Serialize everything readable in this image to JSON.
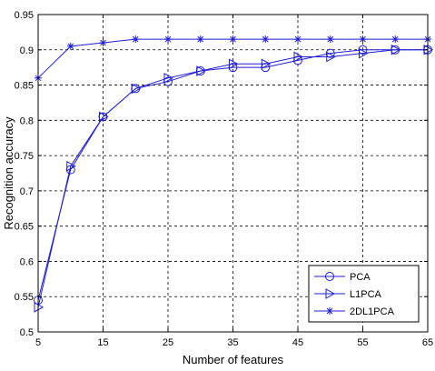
{
  "chart_data": {
    "type": "line",
    "xlabel": "Number of features",
    "ylabel": "Recognition accuracy",
    "xlim": [
      5,
      65
    ],
    "ylim": [
      0.5,
      0.95
    ],
    "xticks": [
      5,
      15,
      25,
      35,
      45,
      55,
      65
    ],
    "yticks": [
      0.5,
      0.55,
      0.6,
      0.65,
      0.7,
      0.75,
      0.8,
      0.85,
      0.9,
      0.95
    ],
    "xtick_labels": [
      "5",
      "15",
      "25",
      "35",
      "45",
      "55",
      "65"
    ],
    "ytick_labels": [
      "0.5",
      "0.55",
      "0.6",
      "0.65",
      "0.7",
      "0.75",
      "0.8",
      "0.85",
      "0.9",
      "0.95"
    ],
    "grid": true,
    "legend_position": "bottom-right",
    "line_color": "#1f1fd6",
    "series": [
      {
        "name": "PCA",
        "marker": "circle",
        "x": [
          5,
          10,
          15,
          20,
          25,
          30,
          35,
          40,
          45,
          50,
          55,
          60,
          65
        ],
        "values": [
          0.545,
          0.73,
          0.805,
          0.845,
          0.855,
          0.87,
          0.875,
          0.875,
          0.885,
          0.895,
          0.9,
          0.9,
          0.9
        ]
      },
      {
        "name": "L1PCA",
        "marker": "triangle-right",
        "x": [
          5,
          10,
          15,
          20,
          25,
          30,
          35,
          40,
          45,
          50,
          55,
          60,
          65
        ],
        "values": [
          0.535,
          0.735,
          0.805,
          0.845,
          0.86,
          0.87,
          0.88,
          0.88,
          0.89,
          0.89,
          0.895,
          0.9,
          0.9
        ]
      },
      {
        "name": "2DL1PCA",
        "marker": "asterisk",
        "x": [
          5,
          10,
          15,
          20,
          25,
          30,
          35,
          40,
          45,
          50,
          55,
          60,
          65
        ],
        "values": [
          0.86,
          0.905,
          0.91,
          0.915,
          0.915,
          0.915,
          0.915,
          0.915,
          0.915,
          0.915,
          0.915,
          0.915,
          0.915
        ]
      }
    ]
  }
}
